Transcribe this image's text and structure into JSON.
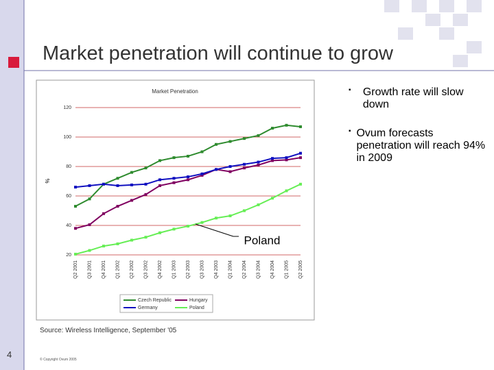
{
  "slide": {
    "title": "Market penetration will continue to grow",
    "bullets": [
      "Growth rate will slow down",
      "Ovum forecasts penetration will reach 94% in 2009"
    ],
    "source": "Source: Wireless Intelligence, September '05",
    "copyright": "© Copyright Ovum 2005",
    "page_number": "4"
  },
  "chart_data": {
    "type": "line",
    "title": "Market Penetration",
    "y_label": "%",
    "annotation": "Poland",
    "categories": [
      "Q2 2001",
      "Q3 2001",
      "Q4 2001",
      "Q1 2002",
      "Q2 2002",
      "Q3 2002",
      "Q4 2002",
      "Q1 2003",
      "Q2 2003",
      "Q3 2003",
      "Q4 2003",
      "Q1 2004",
      "Q2 2004",
      "Q3 2004",
      "Q4 2004",
      "Q1 2005",
      "Q2 2005"
    ],
    "ylim": [
      20,
      120
    ],
    "yticks": [
      20,
      40,
      60,
      80,
      100,
      120
    ],
    "grid": true,
    "series": [
      {
        "name": "Czech Republic",
        "color": "#2e8b2e",
        "values": [
          53,
          58,
          68,
          72,
          76,
          79,
          84,
          86,
          87,
          90,
          95,
          97,
          99,
          101,
          106,
          108,
          107
        ]
      },
      {
        "name": "Hungary",
        "color": "#800060",
        "values": [
          38,
          40.5,
          48,
          53,
          57,
          61,
          67,
          69,
          71,
          74,
          78,
          76.5,
          79,
          81,
          84,
          84.5,
          86
        ]
      },
      {
        "name": "Germany",
        "color": "#1010c0",
        "values": [
          66,
          67,
          68,
          67,
          67.5,
          68,
          71,
          72,
          73,
          75,
          78,
          80,
          81.5,
          83,
          85.5,
          86,
          89
        ]
      },
      {
        "name": "Poland",
        "color": "#66ee55",
        "values": [
          20.5,
          23,
          26,
          27.5,
          30,
          32,
          35,
          37.5,
          39.5,
          42,
          45,
          46.5,
          50,
          54,
          58.5,
          63.5,
          68
        ]
      }
    ]
  }
}
